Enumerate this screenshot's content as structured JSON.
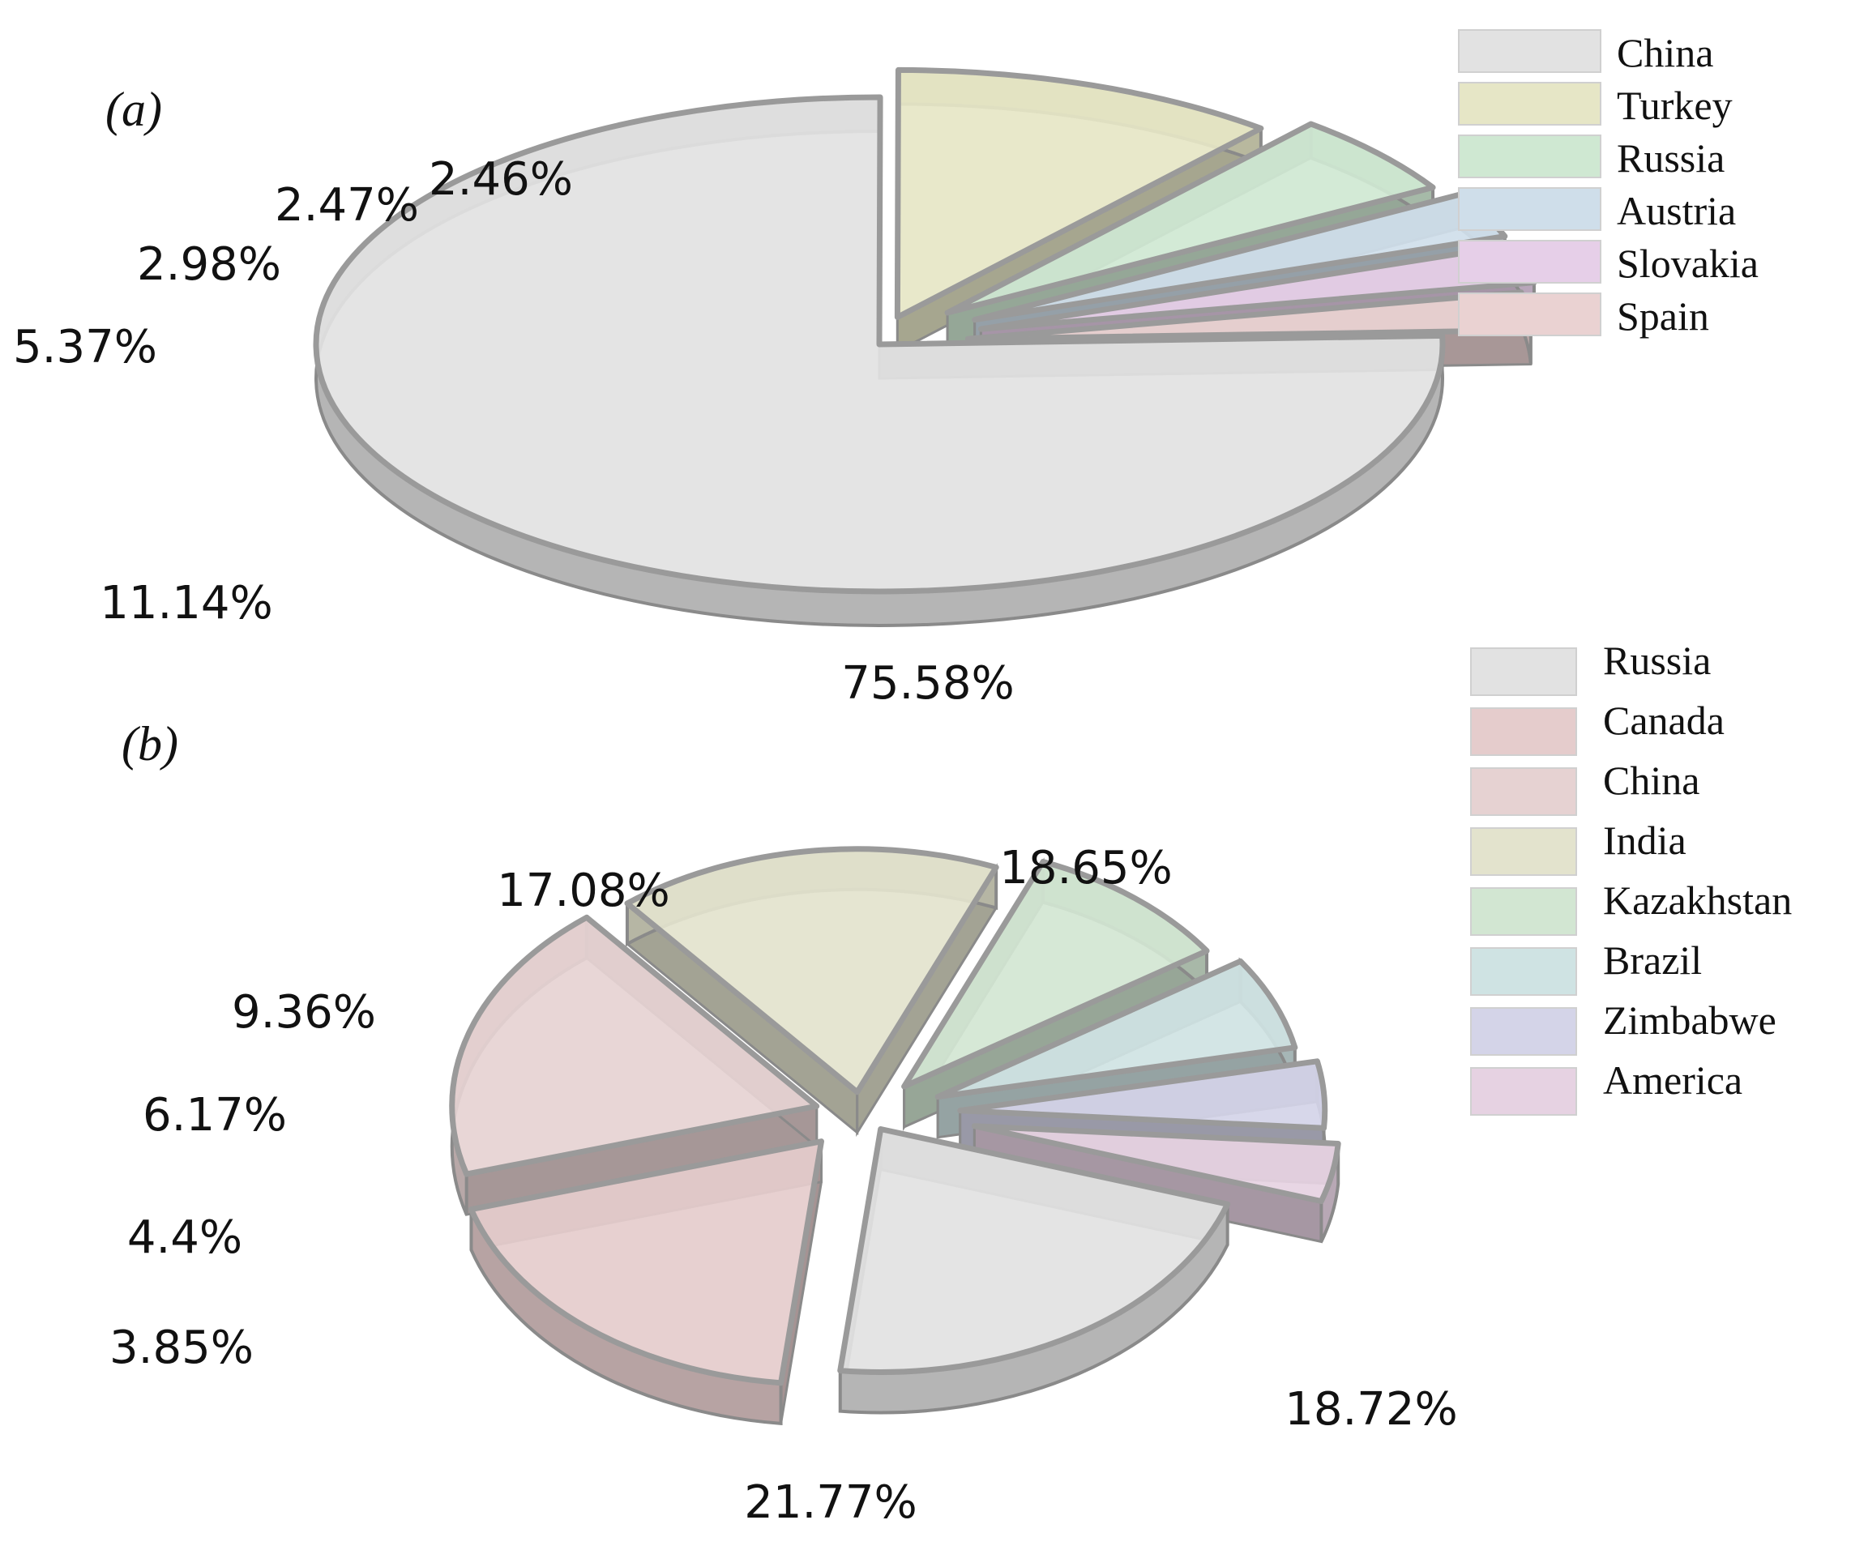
{
  "chart_data": [
    {
      "type": "pie",
      "style": "3d-exploded",
      "panel_label": "a",
      "title": "",
      "categories": [
        "China",
        "Turkey",
        "Russia",
        "Austria",
        "Slovakia",
        "Spain"
      ],
      "values": [
        75.58,
        11.14,
        5.37,
        2.98,
        2.47,
        2.46
      ],
      "value_labels": [
        "75.58%",
        "11.14%",
        "5.37%",
        "2.98%",
        "2.47%",
        "2.46%"
      ],
      "colors": [
        "#e2e2e2",
        "#e6e6c6",
        "#cfe8d2",
        "#cfdeea",
        "#e6cfe8",
        "#ead2d2"
      ],
      "legend": "top-right"
    },
    {
      "type": "pie",
      "style": "3d-exploded",
      "panel_label": "b",
      "title": "",
      "categories": [
        "Russia",
        "Canada",
        "China",
        "India",
        "Kazakhstan",
        "Brazil",
        "Zimbabwe",
        "America"
      ],
      "values": [
        21.77,
        18.72,
        18.65,
        17.08,
        9.36,
        6.17,
        4.4,
        3.85
      ],
      "value_labels": [
        "21.77%",
        "18.72%",
        "18.65%",
        "17.08%",
        "9.36%",
        "6.17%",
        "4.4%",
        "3.85%"
      ],
      "colors": [
        "#e2e2e2",
        "#e5cccc",
        "#e6d2d2",
        "#e3e3cd",
        "#d2e6d2",
        "#cfe3e3",
        "#d4d4e8",
        "#e6d2e2"
      ],
      "legend": "top-right"
    }
  ]
}
